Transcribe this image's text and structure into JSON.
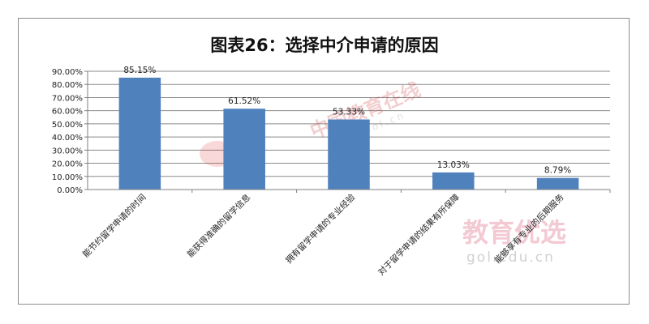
{
  "chart_data": {
    "type": "bar",
    "title": "图表26：选择中介申请的原因",
    "categories": [
      "能节约留学申请的时间",
      "能获得准确的留学信息",
      "拥有留学申请的专业经验",
      "对于留学申请的结果有所保障",
      "能够享有专业的后期服务"
    ],
    "values": [
      85.15,
      61.52,
      53.33,
      13.03,
      8.79
    ],
    "value_labels": [
      "85.15%",
      "61.52%",
      "53.33%",
      "13.03%",
      "8.79%"
    ],
    "yticks": [
      "0.00%",
      "10.00%",
      "20.00%",
      "30.00%",
      "40.00%",
      "50.00%",
      "60.00%",
      "70.00%",
      "80.00%",
      "90.00%"
    ],
    "ylim": [
      0,
      90
    ],
    "grid": true,
    "xlabel": "",
    "ylabel": ""
  },
  "colors": {
    "bar": "#4f81bd",
    "grid": "#8a8a8a",
    "axis": "#7f7f7f"
  },
  "watermarks": {
    "center_logo": "中国教育在线",
    "center_url": "www.eol.cn",
    "corner_logo": "教育优选",
    "corner_url": "gol.edu.cn"
  }
}
